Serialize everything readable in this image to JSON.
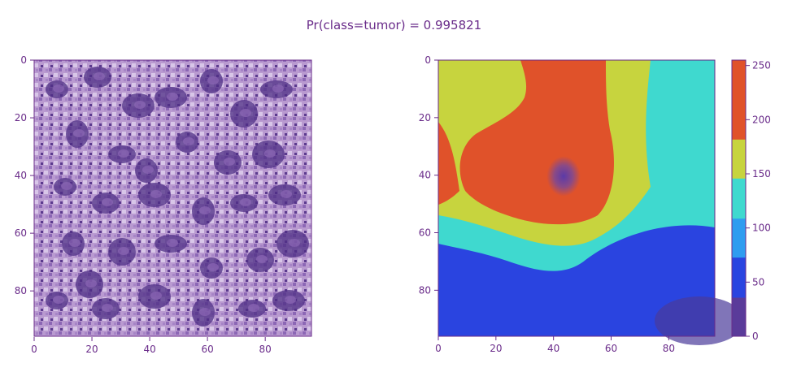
{
  "suptitle": "Pr(class=tumor) = 0.995821",
  "colors": {
    "text": "#6a2c8a",
    "axis": "#6a2c8a",
    "background": "#ffffff"
  },
  "chart_data": [
    {
      "type": "heatmap",
      "kind": "image",
      "content": "H&E stained tissue patch (purple hematoxylin / pink eosin)",
      "xlim": [
        0,
        96
      ],
      "ylim": [
        96,
        0
      ],
      "xticks": [
        0,
        20,
        40,
        60,
        80
      ],
      "yticks": [
        0,
        20,
        40,
        60,
        80
      ],
      "grid": false
    },
    {
      "type": "heatmap",
      "kind": "attention-map",
      "colormap": "turbo",
      "xlim": [
        0,
        96
      ],
      "ylim": [
        96,
        0
      ],
      "xticks": [
        0,
        20,
        40,
        60,
        80
      ],
      "yticks": [
        0,
        20,
        40,
        60,
        80
      ],
      "grid": false,
      "value_range": [
        0,
        255
      ],
      "colorbar_ticks": [
        0,
        50,
        100,
        150,
        200,
        250
      ],
      "colorbar_levels": [
        {
          "from": 0,
          "to": 36,
          "color": "#5a3b9a"
        },
        {
          "from": 36,
          "to": 73,
          "color": "#2a44e0"
        },
        {
          "from": 73,
          "to": 109,
          "color": "#2f9cf0"
        },
        {
          "from": 109,
          "to": 146,
          "color": "#3fd9cf"
        },
        {
          "from": 146,
          "to": 182,
          "color": "#c7d43e"
        },
        {
          "from": 182,
          "to": 219,
          "color": "#e0522a"
        },
        {
          "from": 219,
          "to": 255,
          "color": "#e0522a"
        }
      ],
      "regions": [
        {
          "label": "high",
          "value": 210,
          "center": [
            44,
            42
          ],
          "description": "central hotspot"
        },
        {
          "label": "peak",
          "value": 255,
          "center": [
            43,
            40
          ]
        },
        {
          "label": "low",
          "value": 40,
          "description": "bottom band rows 70-96"
        }
      ]
    }
  ]
}
